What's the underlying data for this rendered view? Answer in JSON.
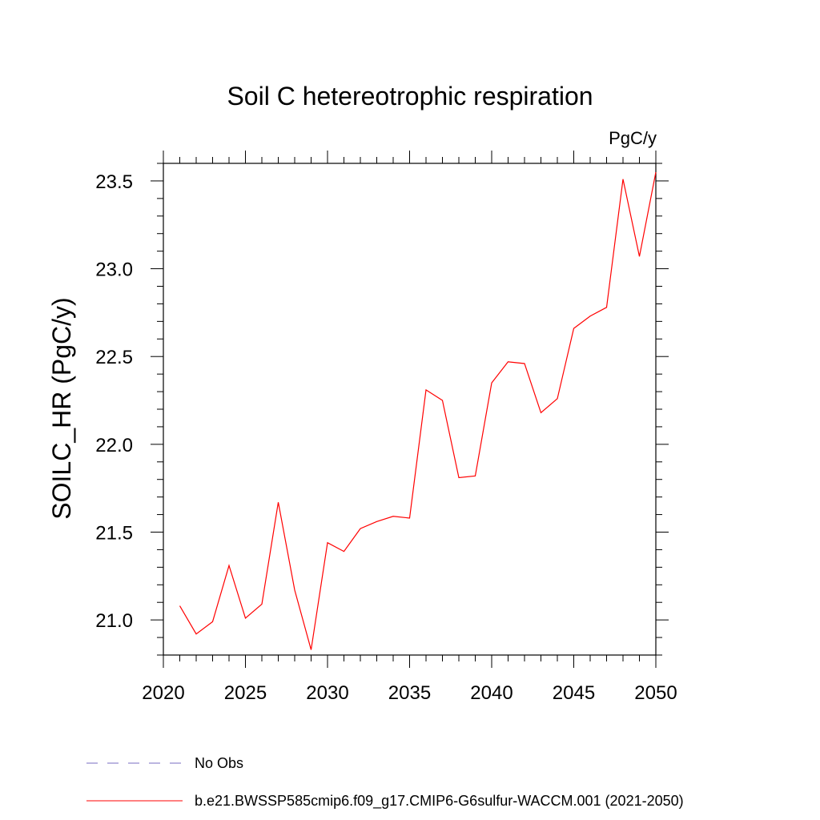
{
  "chart_data": {
    "type": "line",
    "title": "Soil C hetereotrophic respiration",
    "units": "PgC/y",
    "ylabel": "SOILC_HR  (PgC/y)",
    "xlabel": "",
    "xlim": [
      2020,
      2050
    ],
    "ylim": [
      20.8,
      23.6
    ],
    "x_ticks": [
      2020,
      2025,
      2030,
      2035,
      2040,
      2045,
      2050
    ],
    "y_ticks": [
      "21.0",
      "21.5",
      "22.0",
      "22.5",
      "23.0",
      "23.5"
    ],
    "grid": false,
    "legend_position": "bottom",
    "series": [
      {
        "name": "b.e21.BWSSP585cmip6.f09_g17.CMIP6-G6sulfur-WACCM.001 (2021-2050)",
        "color": "#ff0000",
        "style": "solid",
        "x": [
          2021,
          2022,
          2023,
          2024,
          2025,
          2026,
          2027,
          2028,
          2029,
          2030,
          2031,
          2032,
          2033,
          2034,
          2035,
          2036,
          2037,
          2038,
          2039,
          2040,
          2041,
          2042,
          2043,
          2044,
          2045,
          2046,
          2047,
          2048,
          2049,
          2050
        ],
        "values": [
          21.08,
          20.92,
          20.99,
          21.31,
          21.01,
          21.09,
          21.67,
          21.17,
          20.83,
          21.44,
          21.39,
          21.52,
          21.56,
          21.59,
          21.58,
          22.31,
          22.25,
          21.81,
          21.82,
          22.35,
          22.47,
          22.46,
          22.18,
          22.26,
          22.66,
          22.73,
          22.78,
          23.51,
          23.07,
          23.55
        ]
      }
    ],
    "legend": [
      {
        "label": "No Obs",
        "color": "#7a6ec0",
        "style": "dashed"
      },
      {
        "label": "b.e21.BWSSP585cmip6.f09_g17.CMIP6-G6sulfur-WACCM.001 (2021-2050)",
        "color": "#ff0000",
        "style": "solid"
      }
    ]
  }
}
